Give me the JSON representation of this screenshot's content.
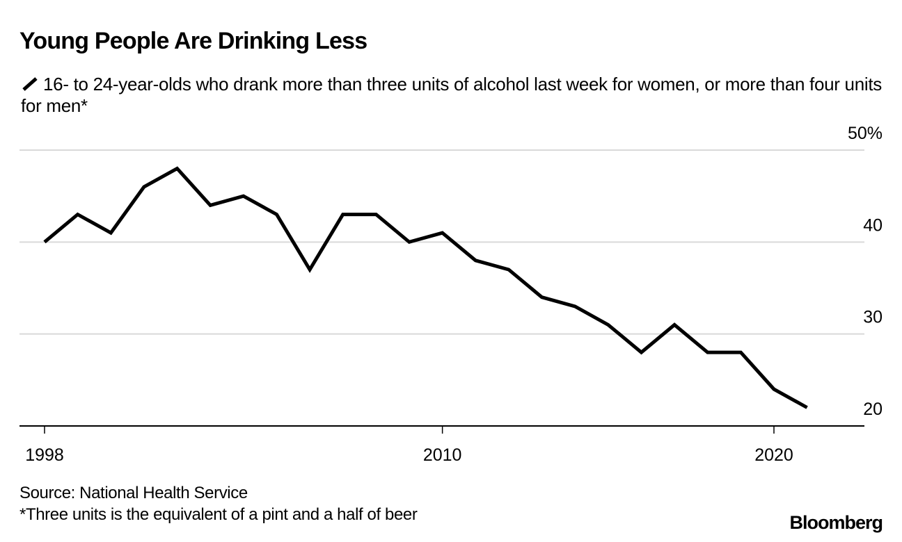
{
  "title": "Young People Are Drinking Less",
  "subtitle": "16- to 24-year-olds who drank more than three units of alcohol last week for women, or more than four units for men*",
  "legend_icon": "line-series-swatch",
  "footer": {
    "source": "Source: National Health Service",
    "note": "*Three units is the equivalent of a pint and a half of beer",
    "logo": "Bloomberg"
  },
  "colors": {
    "line": "#000000",
    "grid": "#d9d9d9",
    "axis": "#000000"
  },
  "chart_data": {
    "type": "line",
    "title": "Young People Are Drinking Less",
    "subtitle": "16- to 24-year-olds who drank more than three units of alcohol last week for women, or more than four units for men*",
    "xlabel": "",
    "ylabel": "",
    "x": [
      1998,
      1999,
      2000,
      2001,
      2002,
      2003,
      2004,
      2005,
      2006,
      2007,
      2008,
      2009,
      2010,
      2011,
      2012,
      2013,
      2014,
      2015,
      2016,
      2017,
      2018,
      2019,
      2020,
      2021
    ],
    "series": [
      {
        "name": "16- to 24-year-olds who drank more than three units of alcohol last week for women, or more than four units for men*",
        "values": [
          40,
          43,
          41,
          46,
          48,
          44,
          45,
          43,
          37,
          43,
          43,
          40,
          41,
          38,
          37,
          34,
          33,
          31,
          28,
          31,
          28,
          28,
          24,
          22
        ]
      }
    ],
    "xlim": [
      1997.25,
      2022.75
    ],
    "ylim": [
      20,
      50
    ],
    "x_ticks": [
      1998,
      2010,
      2020
    ],
    "x_tick_labels": [
      "1998",
      "2010",
      "2020"
    ],
    "y_ticks": [
      20,
      30,
      40,
      50
    ],
    "y_tick_labels": [
      "20",
      "30",
      "40",
      "50%"
    ],
    "y_axis_side": "right",
    "grid": true,
    "legend": "top-left"
  }
}
